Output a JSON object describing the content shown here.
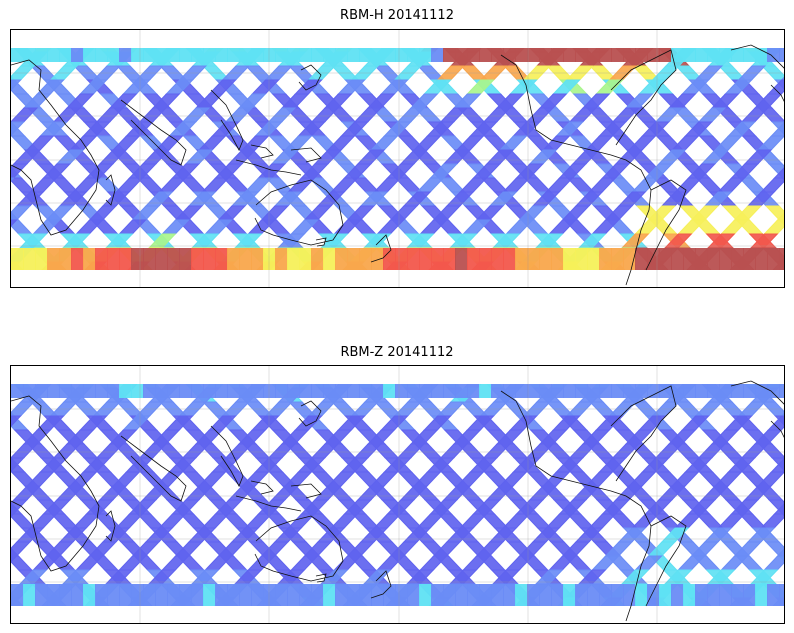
{
  "panels": [
    {
      "title": "RBM-H 20141112",
      "colormap": [
        "#5f63ef",
        "#6a8cf6",
        "#5fe1f3",
        "#a8f58c",
        "#f6f05a",
        "#f9a64c",
        "#f2574c",
        "#b85050"
      ],
      "hot_regions": "high values along southern band and northern Atlantic"
    },
    {
      "title": "RBM-Z 20141112",
      "colormap": [
        "#5f63ef",
        "#6a8cf6",
        "#5fe1f3",
        "#a8f58c",
        "#f6f05a"
      ],
      "hot_regions": "moderate values near southern Atlantic and south band"
    }
  ],
  "map": {
    "projection": "equirectangular",
    "gridlines": true,
    "coastlines": true
  }
}
